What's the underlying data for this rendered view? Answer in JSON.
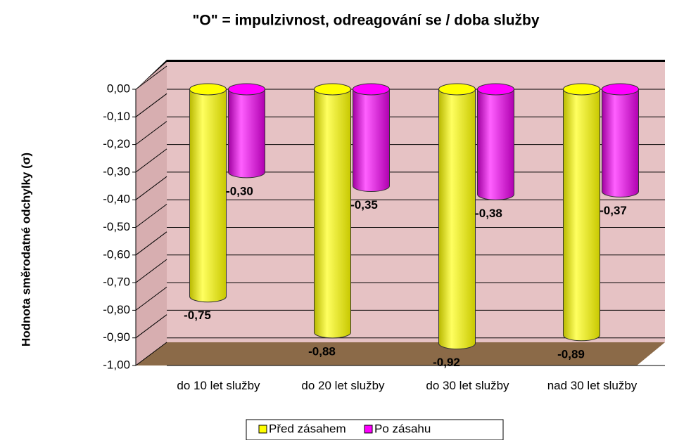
{
  "chart_data": {
    "type": "bar",
    "title": "\"O\" = impulzivnost, odreagování se / doba služby",
    "y_label": "Hodnota směrodatné odchylky (σ)",
    "categories": [
      "do 10 let služby",
      "do 20 let služby",
      "do 30 let služby",
      "nad 30 let služby"
    ],
    "series": [
      {
        "name": "Před zásahem",
        "color": "#ffff00",
        "values": [
          -0.75,
          -0.88,
          -0.92,
          -0.89
        ],
        "value_labels": [
          "-0,75",
          "-0,88",
          "-0,92",
          "-0,89"
        ]
      },
      {
        "name": "Po zásahu",
        "color": "#ff00ff",
        "values": [
          -0.3,
          -0.35,
          -0.38,
          -0.37
        ],
        "value_labels": [
          "-0,30",
          "-0,35",
          "-0,38",
          "-0,37"
        ]
      }
    ],
    "ylim": [
      -1,
      0
    ],
    "yticks": [
      {
        "value": 0,
        "label": "0,00"
      },
      {
        "value": -0.1,
        "label": "-0,10"
      },
      {
        "value": -0.2,
        "label": "-0,20"
      },
      {
        "value": -0.3,
        "label": "-0,30"
      },
      {
        "value": -0.4,
        "label": "-0,40"
      },
      {
        "value": -0.5,
        "label": "-0,50"
      },
      {
        "value": -0.6,
        "label": "-0,60"
      },
      {
        "value": -0.7,
        "label": "-0,70"
      },
      {
        "value": -0.8,
        "label": "-0,80"
      },
      {
        "value": -0.9,
        "label": "-0,90"
      },
      {
        "value": -1,
        "label": "-1,00"
      }
    ],
    "grid": true,
    "legend": "bottom"
  }
}
